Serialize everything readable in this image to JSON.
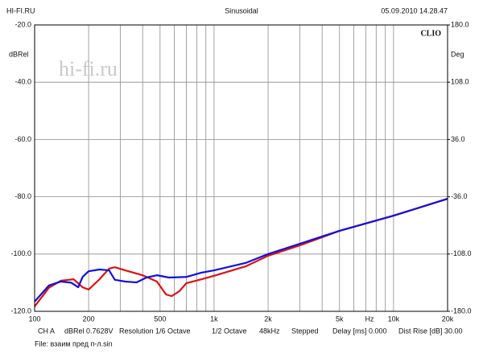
{
  "chart_data": {
    "type": "line",
    "title": "Sinusoidal",
    "header_left": "HI-FI.RU",
    "header_right": "05.09.2010 14.28.47",
    "ylabel": "dBRel",
    "y2label": "Deg",
    "xlabel": "Hz",
    "watermark": "hi-fi.ru",
    "brand": "CLIO",
    "footer": [
      "CH A",
      "dBRel 0.7628V",
      "Resolution 1/6 Octave",
      "1/2 Octave",
      "48kHz",
      "Stepped",
      "Delay [ms] 0.000",
      "Dist Rise [dB] 30.00"
    ],
    "file": "File: взаим пред п-л.sin",
    "log_x": true,
    "grid": true,
    "xlim": [
      100,
      20000
    ],
    "xticks": [
      100,
      200,
      500,
      {
        "value": 1000,
        "label": "1k"
      },
      {
        "value": 2000,
        "label": "2k"
      },
      {
        "value": 5000,
        "label": "5k"
      },
      {
        "value": 10000,
        "label": "10k"
      },
      {
        "value": 20000,
        "label": "20k"
      }
    ],
    "xgrid": [
      300,
      400,
      600,
      700,
      800,
      900,
      3000,
      4000,
      6000,
      7000,
      8000,
      9000
    ],
    "ylim": [
      -120,
      -20
    ],
    "yticks": [
      {
        "value": -20,
        "label": "-20.0"
      },
      {
        "value": -40,
        "label": "-40.0"
      },
      {
        "value": -60,
        "label": "-60.0"
      },
      {
        "value": -80,
        "label": "-80.0"
      },
      {
        "value": -100,
        "label": "-100.0"
      },
      {
        "value": -120,
        "label": "-120.0"
      }
    ],
    "y2lim": [
      -180,
      180
    ],
    "y2ticks": [
      {
        "value": 180,
        "label": "180.0"
      },
      {
        "value": 108,
        "label": "108.0"
      },
      {
        "value": 36,
        "label": "36.0"
      },
      {
        "value": -36,
        "label": "-36.0"
      },
      {
        "value": -108,
        "label": "-108.0"
      },
      {
        "value": -180,
        "label": "-180.0"
      }
    ],
    "series": [
      {
        "color": "#e01010",
        "x": [
          100,
          120,
          140,
          165,
          185,
          200,
          230,
          260,
          280,
          320,
          400,
          480,
          540,
          580,
          640,
          700,
          850,
          1000,
          1500,
          2000,
          3000,
          5000,
          10000,
          20000
        ],
        "values": [
          -118.3,
          -111.8,
          -109.3,
          -108.8,
          -111.6,
          -112.4,
          -108.8,
          -105.1,
          -104.6,
          -105.7,
          -107.4,
          -109.6,
          -114.1,
          -114.7,
          -113,
          -110.2,
          -108.8,
          -107.6,
          -104.3,
          -100.6,
          -97,
          -91.9,
          -86.6,
          -80.7
        ]
      },
      {
        "color": "#1010e0",
        "x": [
          100,
          120,
          140,
          160,
          175,
          185,
          200,
          230,
          260,
          280,
          320,
          370,
          420,
          480,
          560,
          700,
          850,
          1000,
          1500,
          2000,
          5000,
          10000,
          20000
        ],
        "values": [
          -116.6,
          -111,
          -109.6,
          -110,
          -111.6,
          -108,
          -106,
          -105.4,
          -105.7,
          -109,
          -109.6,
          -109.9,
          -108.2,
          -107.4,
          -108.2,
          -108,
          -106.5,
          -105.7,
          -103.1,
          -100,
          -91.9,
          -86.6,
          -80.7
        ]
      }
    ]
  }
}
